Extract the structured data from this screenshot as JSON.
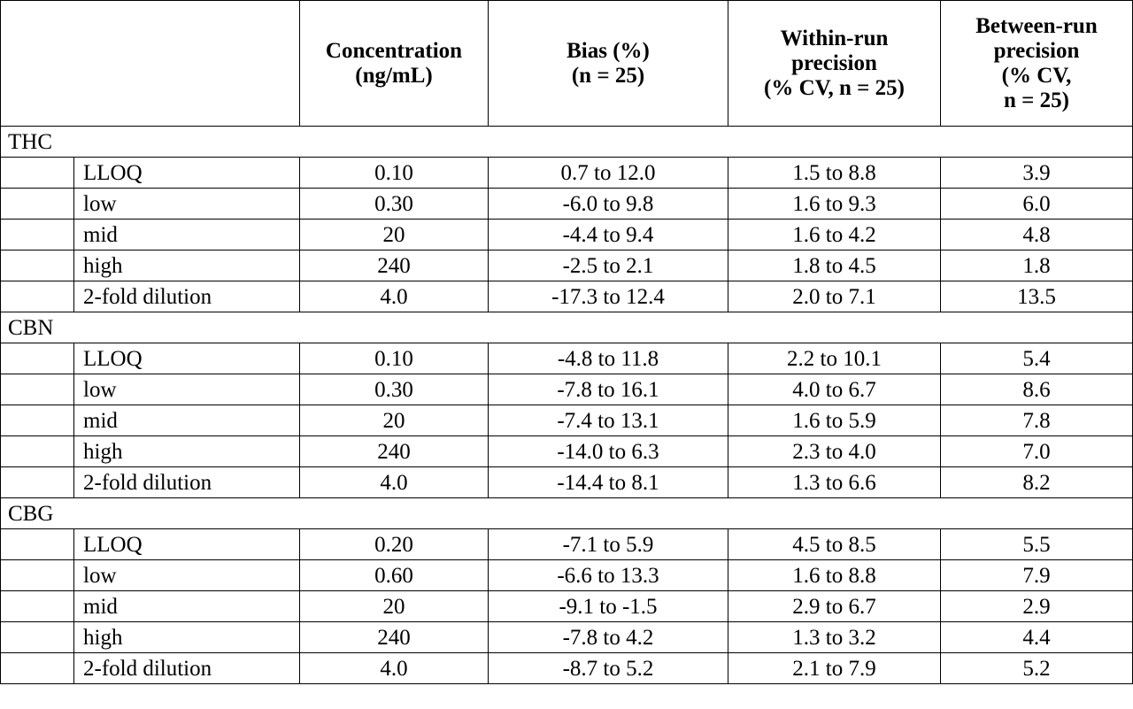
{
  "headers": {
    "concentration": "Concentration\n(ng/mL)",
    "bias": "Bias (%)\n(n = 25)",
    "within_run": "Within-run\nprecision\n(% CV, n = 25)",
    "between_run": "Between-run\nprecision\n(% CV,\nn = 25)"
  },
  "groups": [
    {
      "name": "THC",
      "rows": [
        {
          "level": "LLOQ",
          "conc": "0.10",
          "bias": "0.7 to 12.0",
          "within": "1.5 to 8.8",
          "between": "3.9"
        },
        {
          "level": "low",
          "conc": "0.30",
          "bias": "-6.0 to 9.8",
          "within": "1.6 to 9.3",
          "between": "6.0"
        },
        {
          "level": "mid",
          "conc": "20",
          "bias": "-4.4 to 9.4",
          "within": "1.6 to 4.2",
          "between": "4.8"
        },
        {
          "level": "high",
          "conc": "240",
          "bias": "-2.5 to 2.1",
          "within": "1.8 to 4.5",
          "between": "1.8"
        },
        {
          "level": "2-fold dilution",
          "conc": "4.0",
          "bias": "-17.3 to 12.4",
          "within": "2.0 to 7.1",
          "between": "13.5"
        }
      ]
    },
    {
      "name": "CBN",
      "rows": [
        {
          "level": "LLOQ",
          "conc": "0.10",
          "bias": "-4.8 to 11.8",
          "within": "2.2 to 10.1",
          "between": "5.4"
        },
        {
          "level": "low",
          "conc": "0.30",
          "bias": "-7.8 to 16.1",
          "within": "4.0 to 6.7",
          "between": "8.6"
        },
        {
          "level": "mid",
          "conc": "20",
          "bias": "-7.4 to 13.1",
          "within": "1.6 to 5.9",
          "between": "7.8"
        },
        {
          "level": "high",
          "conc": "240",
          "bias": "-14.0 to 6.3",
          "within": "2.3 to 4.0",
          "between": "7.0"
        },
        {
          "level": "2-fold dilution",
          "conc": "4.0",
          "bias": "-14.4 to 8.1",
          "within": "1.3 to 6.6",
          "between": "8.2"
        }
      ]
    },
    {
      "name": "CBG",
      "rows": [
        {
          "level": "LLOQ",
          "conc": "0.20",
          "bias": "-7.1 to 5.9",
          "within": "4.5 to 8.5",
          "between": "5.5"
        },
        {
          "level": "low",
          "conc": "0.60",
          "bias": "-6.6 to 13.3",
          "within": "1.6 to 8.8",
          "between": "7.9"
        },
        {
          "level": "mid",
          "conc": "20",
          "bias": "-9.1 to -1.5",
          "within": "2.9 to 6.7",
          "between": "2.9"
        },
        {
          "level": "high",
          "conc": "240",
          "bias": "-7.8 to 4.2",
          "within": "1.3 to 3.2",
          "between": "4.4"
        },
        {
          "level": "2-fold dilution",
          "conc": "4.0",
          "bias": "-8.7 to 5.2",
          "within": "2.1 to 7.9",
          "between": "5.2"
        }
      ]
    }
  ]
}
